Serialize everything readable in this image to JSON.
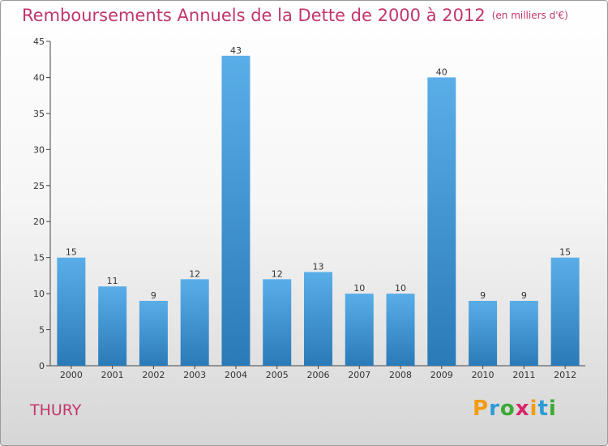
{
  "title": "Remboursements Annuels de la Dette de 2000 à 2012",
  "unit_note": "(en milliers d'€)",
  "city": "THURY",
  "logo": {
    "letters": [
      "P",
      "r",
      "o",
      "x",
      "i",
      "t",
      "i"
    ],
    "colors": [
      "#f39c12",
      "#2e9bd6",
      "#3aaa35",
      "#d7266b",
      "#f39c12",
      "#2e9bd6",
      "#3aaa35"
    ]
  },
  "colors": {
    "bar_top": "#5aaee8",
    "bar_bottom": "#2a7ab8",
    "title": "#c2366c"
  },
  "chart_data": {
    "type": "bar",
    "title": "Remboursements Annuels de la Dette de 2000 à 2012",
    "categories": [
      "2000",
      "2001",
      "2002",
      "2003",
      "2004",
      "2005",
      "2006",
      "2007",
      "2008",
      "2009",
      "2010",
      "2011",
      "2012"
    ],
    "values": [
      15,
      11,
      9,
      12,
      43,
      12,
      13,
      10,
      10,
      40,
      9,
      9,
      15
    ],
    "ylim": [
      0,
      45
    ],
    "yticks": [
      0,
      5,
      10,
      15,
      20,
      25,
      30,
      35,
      40,
      45
    ],
    "grid": false,
    "data_labels": true
  }
}
